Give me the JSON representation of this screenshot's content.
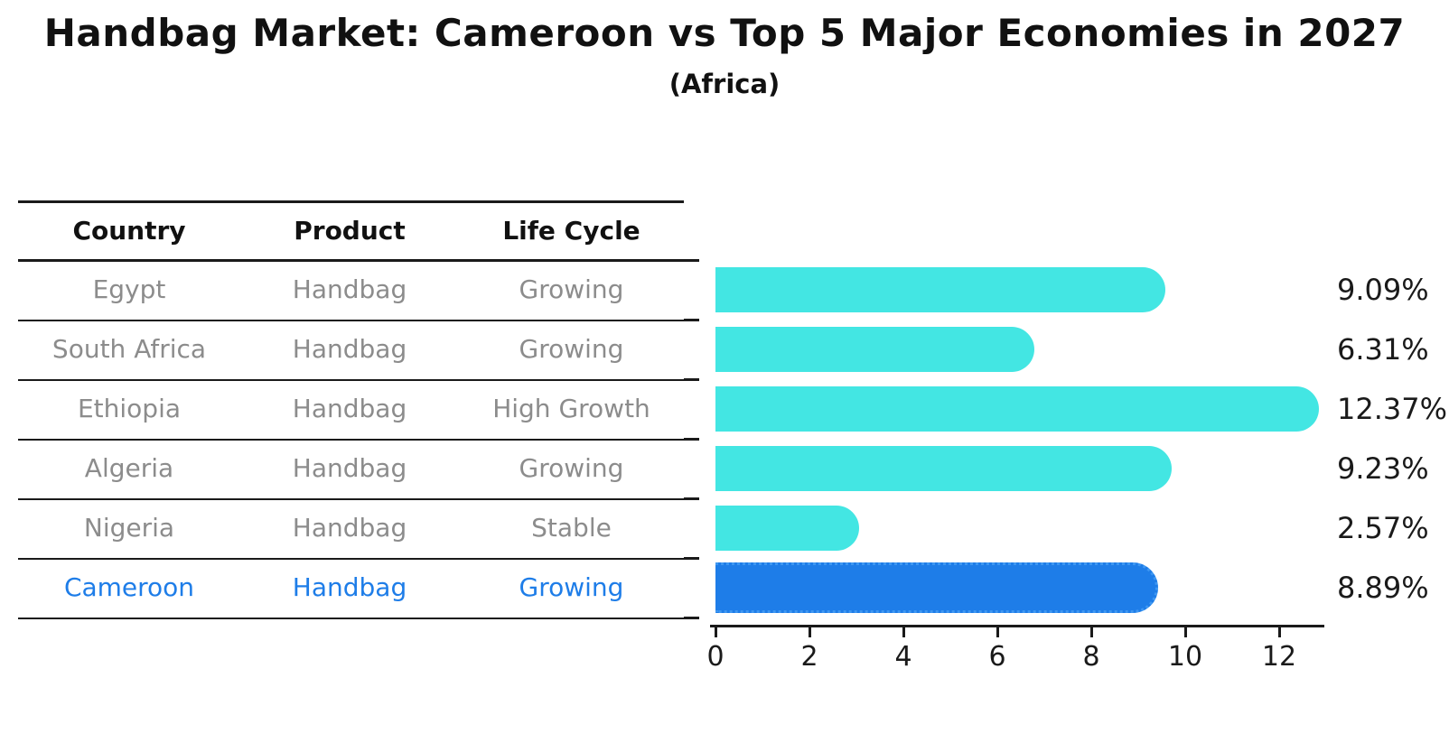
{
  "title": "Handbag Market: Cameroon vs Top 5 Major Economies in 2027",
  "subtitle": "(Africa)",
  "table": {
    "headers": {
      "country": "Country",
      "product": "Product",
      "life_cycle": "Life Cycle"
    },
    "rows": [
      {
        "country": "Egypt",
        "product": "Handbag",
        "life_cycle": "Growing"
      },
      {
        "country": "South Africa",
        "product": "Handbag",
        "life_cycle": "Growing"
      },
      {
        "country": "Ethiopia",
        "product": "Handbag",
        "life_cycle": "High Growth"
      },
      {
        "country": "Algeria",
        "product": "Handbag",
        "life_cycle": "Growing"
      },
      {
        "country": "Nigeria",
        "product": "Handbag",
        "life_cycle": "Stable"
      },
      {
        "country": "Cameroon",
        "product": "Handbag",
        "life_cycle": "Growing"
      }
    ],
    "highlighted_row": "Cameroon"
  },
  "chart_data": {
    "type": "bar",
    "orientation": "horizontal",
    "title": "Handbag Market: Cameroon vs Top 5 Major Economies in 2027",
    "subtitle": "(Africa)",
    "categories": [
      "Egypt",
      "South Africa",
      "Ethiopia",
      "Algeria",
      "Nigeria",
      "Cameroon"
    ],
    "values": [
      9.09,
      6.31,
      12.37,
      9.23,
      2.57,
      8.89
    ],
    "value_labels": [
      "9.09%",
      "6.31%",
      "12.37%",
      "9.23%",
      "2.57%",
      "8.89%"
    ],
    "unit": "percent",
    "xlim": [
      0,
      13
    ],
    "xticks": [
      0,
      2,
      4,
      6,
      8,
      10,
      12
    ],
    "grid": false,
    "legend": false,
    "highlight_category": "Cameroon",
    "colors": {
      "bar": "#43E6E3",
      "highlight_bar": "#1E7DE8",
      "highlight_text": "#1E7DE8",
      "row_text": "#8c8c8c",
      "header_text": "#111111",
      "value_text": "#1a1a1a",
      "axis": "#1a1a1a"
    }
  }
}
